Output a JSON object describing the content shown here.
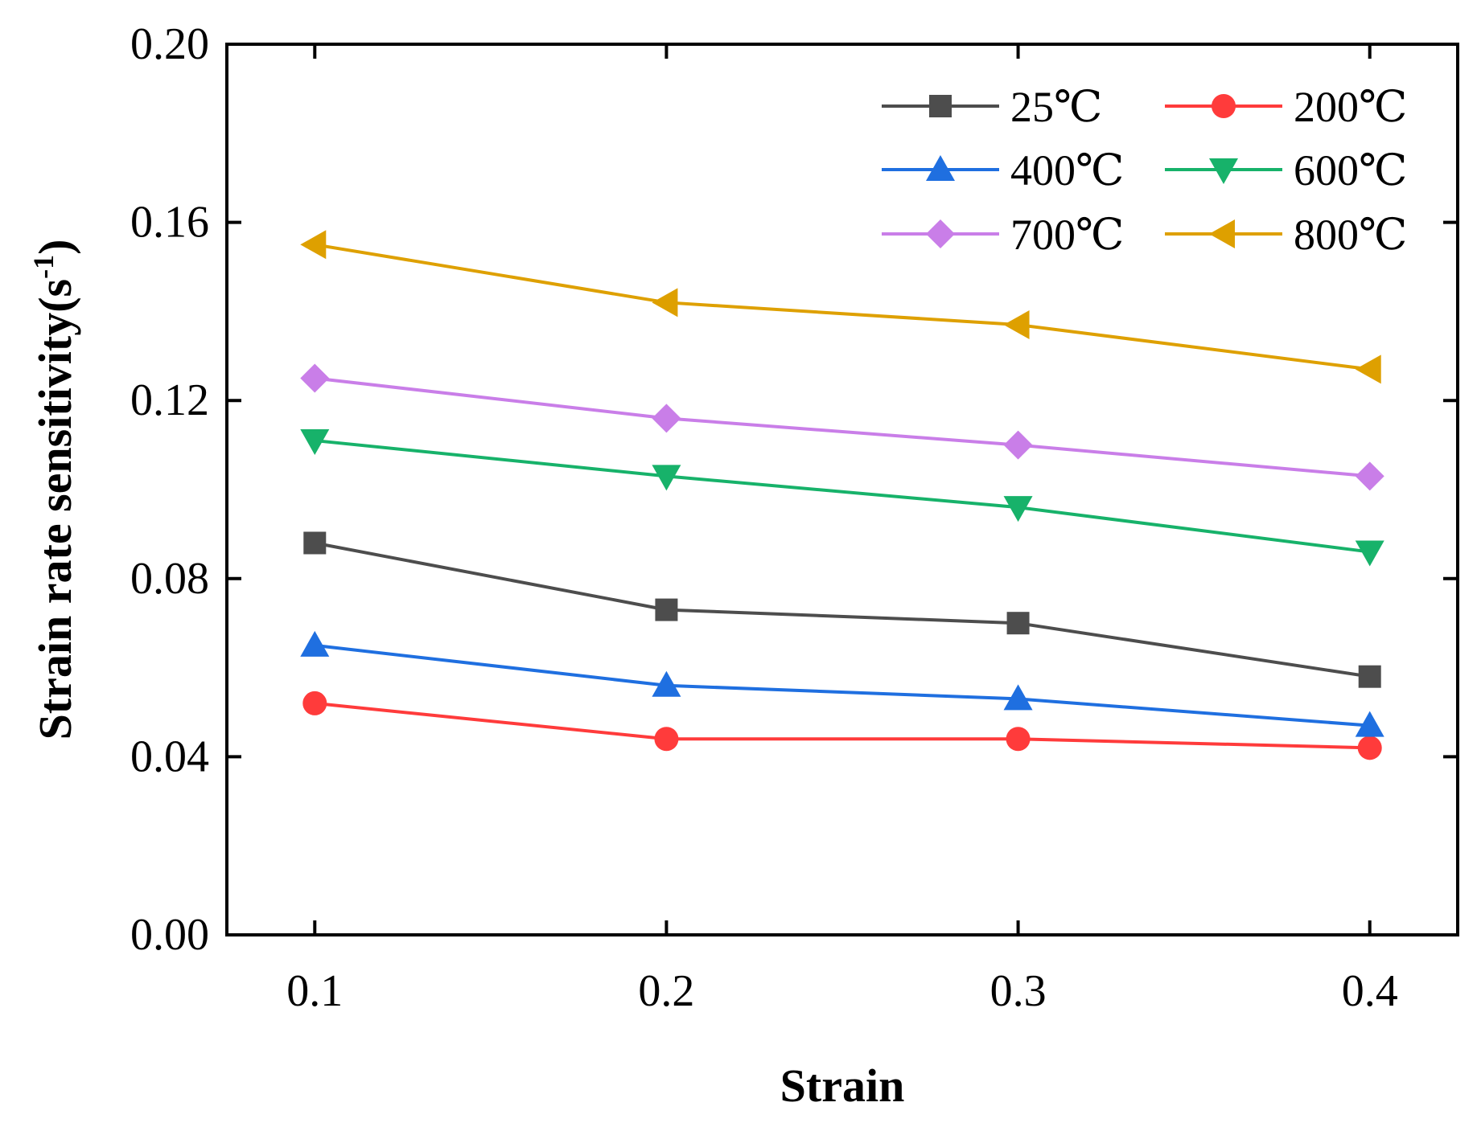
{
  "chart_data": {
    "type": "line",
    "title": "",
    "xlabel": "Strain",
    "ylabel_main": "Strain rate sensitivity(s",
    "ylabel_sup": "-1",
    "ylabel_close": ")",
    "x": [
      0.1,
      0.2,
      0.3,
      0.4
    ],
    "x_tick_labels": [
      "0.1",
      "0.2",
      "0.3",
      "0.4"
    ],
    "xlim": [
      0.075,
      0.425
    ],
    "ylim": [
      0.0,
      0.2
    ],
    "y_ticks": [
      0.0,
      0.04,
      0.08,
      0.12,
      0.16,
      0.2
    ],
    "y_tick_labels": [
      "0.00",
      "0.04",
      "0.08",
      "0.12",
      "0.16",
      "0.20"
    ],
    "grid": false,
    "legend_position": "top-right",
    "series": [
      {
        "name": "25℃",
        "color": "#4d4d4d",
        "marker": "square",
        "values": [
          0.088,
          0.073,
          0.07,
          0.058
        ]
      },
      {
        "name": "200℃",
        "color": "#ff3b3b",
        "marker": "circle",
        "values": [
          0.052,
          0.044,
          0.044,
          0.042
        ]
      },
      {
        "name": "400℃",
        "color": "#1f6fe0",
        "marker": "triangle-up",
        "values": [
          0.065,
          0.056,
          0.053,
          0.047
        ]
      },
      {
        "name": "600℃",
        "color": "#17b26a",
        "marker": "triangle-down",
        "values": [
          0.111,
          0.103,
          0.096,
          0.086
        ]
      },
      {
        "name": "700℃",
        "color": "#c97ee8",
        "marker": "diamond",
        "values": [
          0.125,
          0.116,
          0.11,
          0.103
        ]
      },
      {
        "name": "800℃",
        "color": "#dea000",
        "marker": "triangle-left",
        "values": [
          0.155,
          0.142,
          0.137,
          0.127
        ]
      }
    ]
  }
}
